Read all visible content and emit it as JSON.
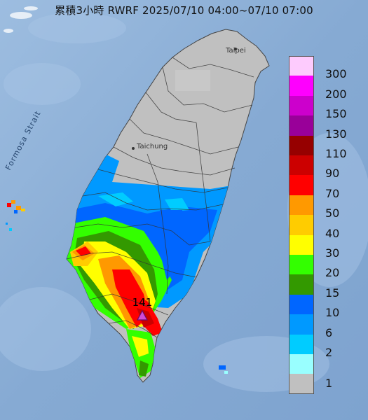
{
  "title": "累積3小時 RWRF 2025/07/10 04:00~07/10 07:00",
  "labels": {
    "strait": "Formosa Strait",
    "taipei": "Taipei",
    "taichung": "Taichung",
    "max_value": "141"
  },
  "legend": {
    "ticks": [
      "300",
      "200",
      "150",
      "130",
      "110",
      "90",
      "70",
      "50",
      "40",
      "30",
      "20",
      "15",
      "10",
      "6",
      "2",
      "1"
    ],
    "colors": [
      "#fdcbfd",
      "#fe00fe",
      "#cc00cc",
      "#990099",
      "#960000",
      "#cc0000",
      "#ff0000",
      "#ff9900",
      "#ffcc00",
      "#ffff00",
      "#33ff00",
      "#339900",
      "#0066ff",
      "#0099ff",
      "#00ccff",
      "#99ffff",
      "#c0c0c0"
    ]
  }
}
